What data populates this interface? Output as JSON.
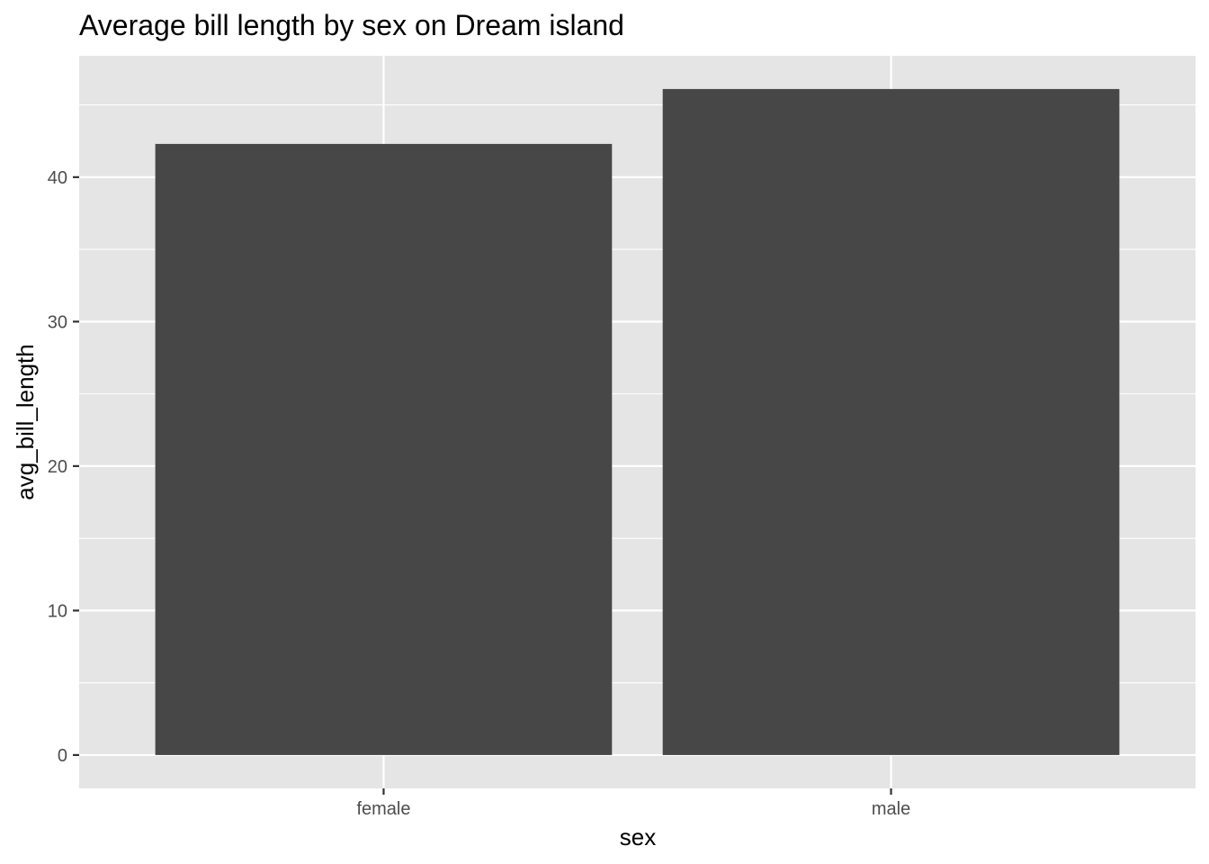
{
  "chart_data": {
    "type": "bar",
    "title": "Average bill length by sex on Dream island",
    "xlabel": "sex",
    "ylabel": "avg_bill_length",
    "categories": [
      "female",
      "male"
    ],
    "values": [
      42.3,
      46.1
    ],
    "ylim": [
      -2.31,
      48.4
    ],
    "yticks": [
      0,
      10,
      20,
      30,
      40
    ],
    "yticks_minor": [
      5,
      15,
      25,
      35,
      45
    ],
    "grid": true,
    "legend": "none",
    "colors": {
      "bar": "#474747",
      "panel": "#e5e5e5",
      "grid": "#ffffff",
      "tick": "#333333",
      "tick_label": "#4d4d4d"
    }
  }
}
